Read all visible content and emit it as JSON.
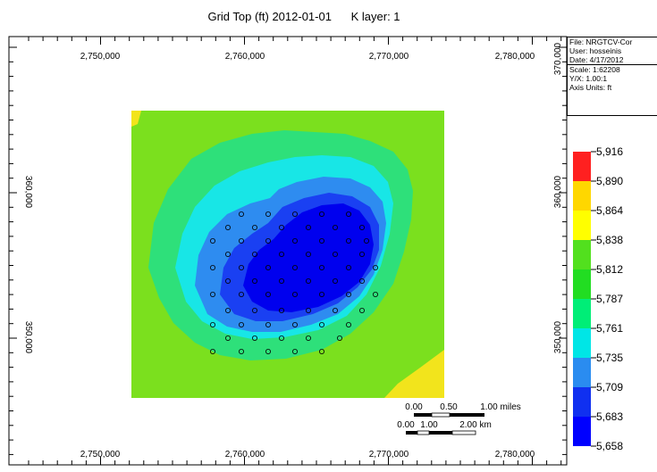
{
  "title": {
    "text": "Grid Top (ft) 2012-01-01",
    "layer": "K layer: 1"
  },
  "axes": {
    "x_ticks": [
      "2,750,000",
      "2,760,000",
      "2,770,000",
      "2,780,000"
    ],
    "y_ticks_left": [
      "360,000",
      "350,000"
    ],
    "y_ticks_right": [
      "370,000",
      "360,000",
      "350,000"
    ]
  },
  "info_box": {
    "file": "File: NRGTCV-Cor",
    "user": "User:  hosseinis",
    "date": "Date: 4/17/2012",
    "scale": "Scale: 1:62208",
    "yx": "Y/X: 1.00:1",
    "units": "Axis Units: ft"
  },
  "legend": {
    "values": [
      "5,916",
      "5,890",
      "5,864",
      "5,838",
      "5,812",
      "5,787",
      "5,761",
      "5,735",
      "5,709",
      "5,683",
      "5,658"
    ],
    "colors": [
      "#ff2020",
      "#ff7f00",
      "#ffd700",
      "#ffff00",
      "#52e01e",
      "#22dd22",
      "#00ee77",
      "#00e6e6",
      "#2a8cf0",
      "#1030f0",
      "#0000ff"
    ]
  },
  "scale_bar": {
    "miles_labels": [
      "0.00",
      "0.50",
      "1.00 miles"
    ],
    "km_labels": [
      "0.00",
      "1.00",
      "2.00 km"
    ]
  },
  "map_colors": {
    "background": "#7be01e",
    "corner_yellow": "#f2e41c",
    "band_green2": "#2ee07a",
    "band_cyan": "#18e6e6",
    "band_blue1": "#2e8cf0",
    "band_blue2": "#1a40f2",
    "band_core": "#0000ee"
  },
  "wells": {
    "count": 62
  }
}
